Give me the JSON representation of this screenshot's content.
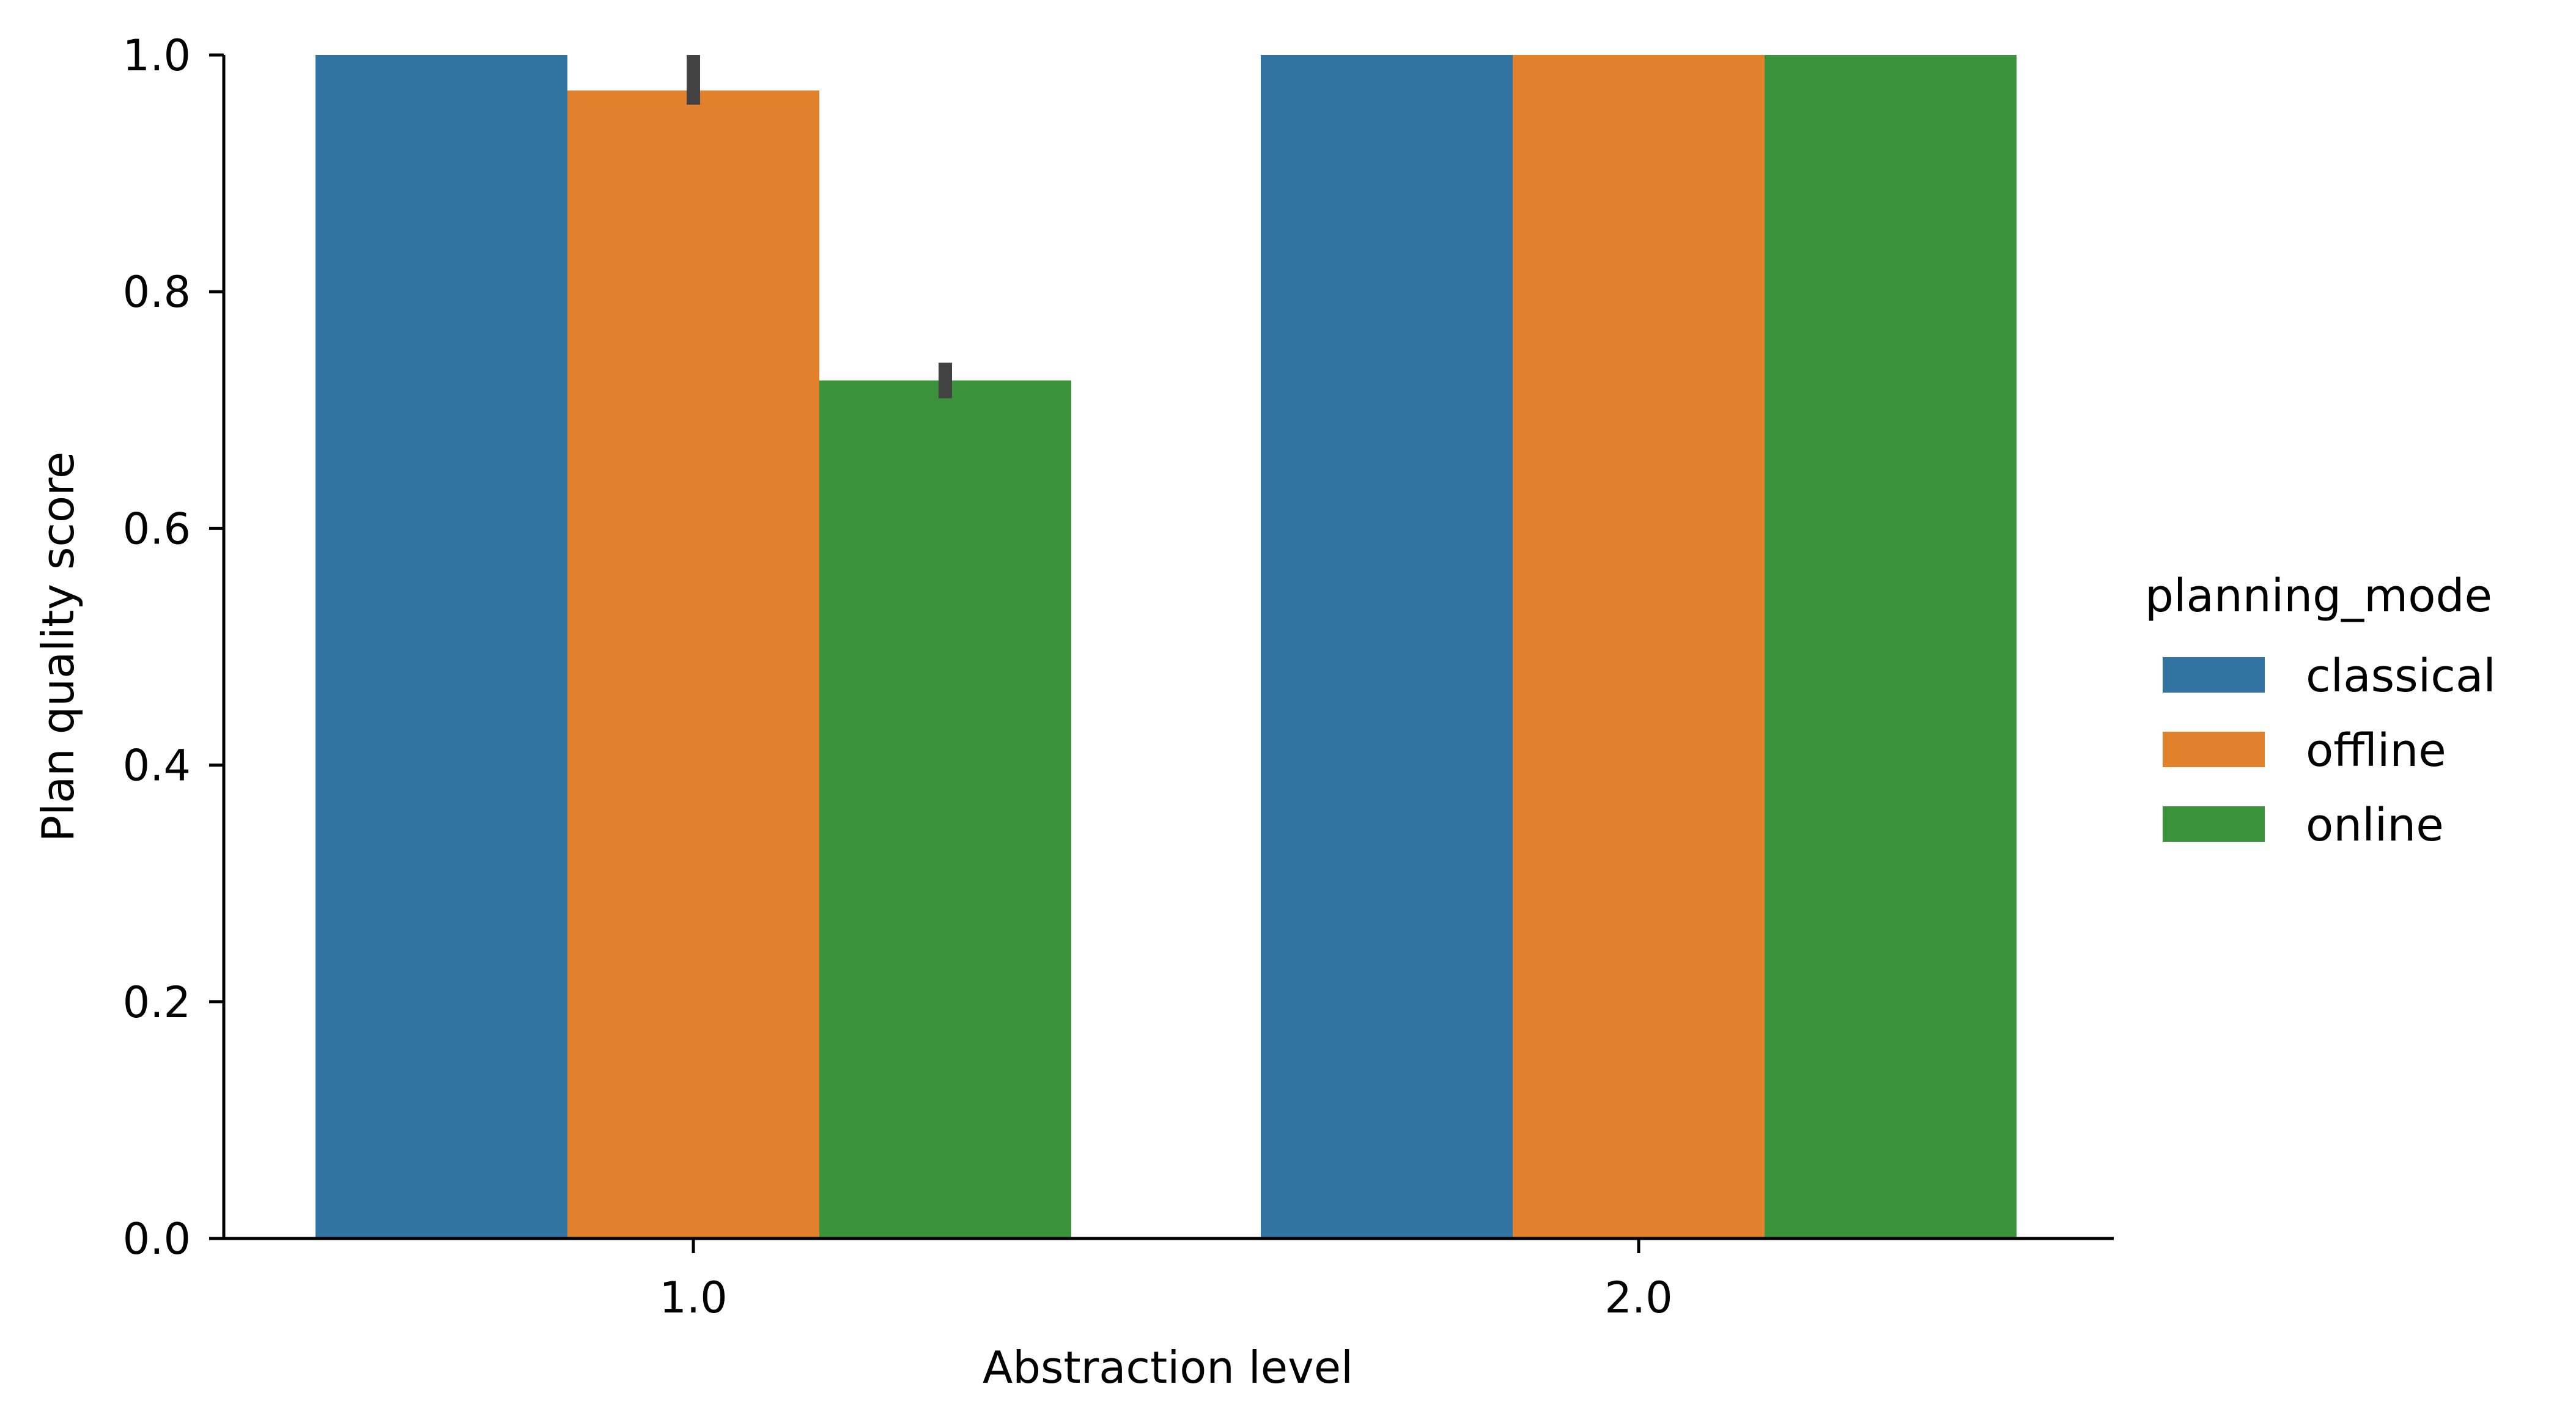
{
  "chart_data": {
    "type": "bar",
    "xlabel": "Abstraction level",
    "ylabel": "Plan quality score",
    "categories": [
      "1.0",
      "2.0"
    ],
    "ylim": [
      0,
      1.0
    ],
    "yticks": [
      "0.0",
      "0.2",
      "0.4",
      "0.6",
      "0.8",
      "1.0"
    ],
    "legend_title": "planning_mode",
    "legend_position": "right",
    "series": [
      {
        "name": "classical",
        "color": "#3274a1",
        "values": [
          1.0,
          1.0
        ],
        "error": [
          [
            1.0,
            1.0
          ],
          [
            1.0,
            1.0
          ]
        ]
      },
      {
        "name": "offline",
        "color": "#e1812c",
        "values": [
          0.97,
          1.0
        ],
        "error": [
          [
            0.958,
            1.0
          ],
          [
            1.0,
            1.0
          ]
        ]
      },
      {
        "name": "online",
        "color": "#3a923a",
        "values": [
          0.725,
          1.0
        ],
        "error": [
          [
            0.71,
            0.74
          ],
          [
            1.0,
            1.0
          ]
        ]
      }
    ]
  }
}
